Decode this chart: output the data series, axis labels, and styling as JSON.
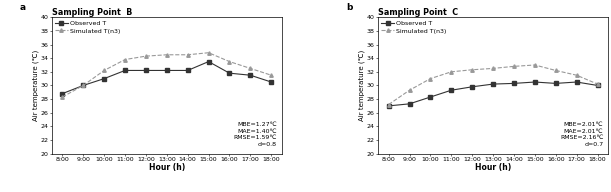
{
  "hours": [
    8,
    9,
    10,
    11,
    12,
    13,
    14,
    15,
    16,
    17,
    18
  ],
  "panel_a": {
    "title": "Sampling Point  B",
    "label": "a",
    "observed": [
      28.8,
      30.0,
      31.0,
      32.2,
      32.2,
      32.2,
      32.2,
      33.5,
      31.8,
      31.5,
      30.5
    ],
    "simulated": [
      28.3,
      30.0,
      32.2,
      33.8,
      34.3,
      34.5,
      34.5,
      34.8,
      33.5,
      32.5,
      31.5
    ],
    "stats": "MBE=1.27℃\nMAE=1.40℃\nRMSE=1.59℃\nd=0.8",
    "ylim": [
      20,
      40
    ],
    "yticks": [
      20,
      22,
      24,
      26,
      28,
      30,
      32,
      34,
      36,
      38,
      40
    ]
  },
  "panel_b": {
    "title": "Sampling Point  C",
    "label": "b",
    "observed": [
      27.0,
      27.3,
      28.3,
      29.3,
      29.8,
      30.2,
      30.3,
      30.5,
      30.3,
      30.5,
      30.0
    ],
    "simulated": [
      27.2,
      29.3,
      31.0,
      32.0,
      32.3,
      32.5,
      32.8,
      33.0,
      32.2,
      31.5,
      30.2
    ],
    "stats": "MBE=2.01℃\nMAE=2.01℃\nRMSE=2.16℃\nd=0.7",
    "ylim": [
      20,
      40
    ],
    "yticks": [
      20,
      22,
      24,
      26,
      28,
      30,
      32,
      34,
      36,
      38,
      40
    ]
  },
  "xlabel": "Hour (h)",
  "ylabel": "Air temperature (℃)",
  "observed_color": "#333333",
  "simulated_color": "#999999",
  "bg_color": "#ffffff",
  "xtick_labels": [
    "8:00",
    "9:00",
    "10:00",
    "11:00",
    "12:00",
    "13:00",
    "14:00",
    "15:00",
    "16:00",
    "17:00",
    "18:00"
  ]
}
